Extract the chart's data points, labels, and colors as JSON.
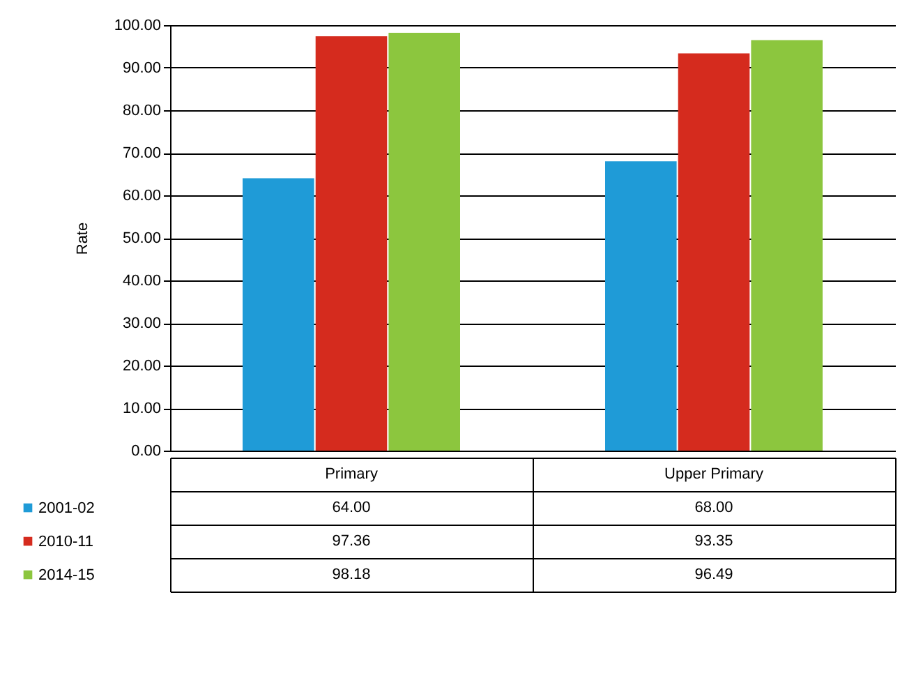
{
  "chart_data": {
    "type": "bar",
    "ylabel": "Rate",
    "categories": [
      "Primary",
      "Upper Primary"
    ],
    "series": [
      {
        "name": "2001-02",
        "color": "#1f9bd7",
        "values": [
          64.0,
          68.0
        ],
        "value_labels": [
          "64.00",
          "68.00"
        ]
      },
      {
        "name": "2010-11",
        "color": "#d52b1e",
        "values": [
          97.36,
          93.35
        ],
        "value_labels": [
          "97.36",
          "93.35"
        ]
      },
      {
        "name": "2014-15",
        "color": "#8cc63e",
        "values": [
          98.18,
          96.49
        ],
        "value_labels": [
          "98.18",
          "96.49"
        ]
      }
    ],
    "ylim": [
      0,
      100
    ],
    "yticks": [
      {
        "value": 0,
        "label": "0.00"
      },
      {
        "value": 10,
        "label": "10.00"
      },
      {
        "value": 20,
        "label": "20.00"
      },
      {
        "value": 30,
        "label": "30.00"
      },
      {
        "value": 40,
        "label": "40.00"
      },
      {
        "value": 50,
        "label": "50.00"
      },
      {
        "value": 60,
        "label": "60.00"
      },
      {
        "value": 70,
        "label": "70.00"
      },
      {
        "value": 80,
        "label": "80.00"
      },
      {
        "value": 90,
        "label": "90.00"
      },
      {
        "value": 100,
        "label": "100.00"
      }
    ],
    "grid": "y",
    "legend": "bottom left"
  }
}
